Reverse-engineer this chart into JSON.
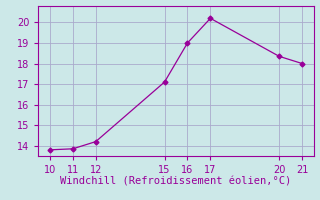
{
  "x": [
    10,
    11,
    12,
    15,
    16,
    17,
    20,
    21
  ],
  "y": [
    13.8,
    13.85,
    14.2,
    17.1,
    19.0,
    20.2,
    18.35,
    18.0
  ],
  "line_color": "#990099",
  "marker": "D",
  "marker_size": 2.5,
  "background_color": "#cce8e8",
  "grid_color": "#aaaacc",
  "xlabel": "Windchill (Refroidissement éolien,°C)",
  "xlabel_color": "#990099",
  "tick_color": "#990099",
  "spine_color": "#990099",
  "xlim": [
    9.5,
    21.5
  ],
  "ylim": [
    13.5,
    20.8
  ],
  "xticks": [
    10,
    11,
    12,
    15,
    16,
    17,
    20,
    21
  ],
  "yticks": [
    14,
    15,
    16,
    17,
    18,
    19,
    20
  ],
  "tick_fontsize": 7,
  "xlabel_fontsize": 7.5
}
